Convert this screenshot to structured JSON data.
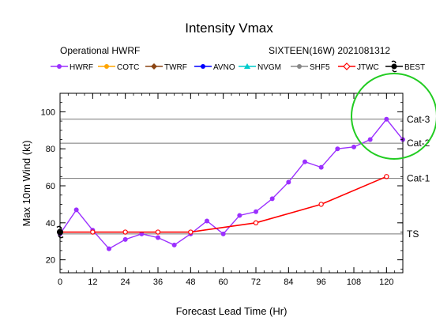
{
  "chart_data": {
    "type": "line",
    "title": "Intensity Vmax",
    "subtitle_left": "Operational HWRF",
    "subtitle_right": "SIXTEEN(16W) 2021081312",
    "xlabel": "Forecast Lead Time (Hr)",
    "ylabel": "Max 10m Wind (kt)",
    "xlim": [
      0,
      126
    ],
    "ylim": [
      13,
      110
    ],
    "xticks": [
      0,
      12,
      24,
      36,
      48,
      60,
      72,
      84,
      96,
      108,
      120
    ],
    "yticks": [
      20,
      40,
      60,
      80,
      100
    ],
    "legend_position": "top",
    "legend": [
      {
        "name": "HWRF",
        "color": "#9b30ff",
        "marker": "circle"
      },
      {
        "name": "COTC",
        "color": "#ffa500",
        "marker": "circle"
      },
      {
        "name": "TWRF",
        "color": "#8b4513",
        "marker": "diamond"
      },
      {
        "name": "AVNO",
        "color": "#0000ff",
        "marker": "circle"
      },
      {
        "name": "NVGM",
        "color": "#00cccc",
        "marker": "triangle"
      },
      {
        "name": "SHF5",
        "color": "#888888",
        "marker": "circle"
      },
      {
        "name": "JTWC",
        "color": "#ff0000",
        "marker": "diamond-open"
      },
      {
        "name": "BEST",
        "color": "#000000",
        "marker": "storm"
      }
    ],
    "reference_lines": [
      {
        "label": "TS",
        "value": 34
      },
      {
        "label": "Cat-1",
        "value": 64
      },
      {
        "label": "Cat-2",
        "value": 83
      },
      {
        "label": "Cat-3",
        "value": 96
      }
    ],
    "series": [
      {
        "name": "HWRF",
        "color": "#9b30ff",
        "x": [
          0,
          6,
          12,
          18,
          24,
          30,
          36,
          42,
          48,
          54,
          60,
          66,
          72,
          78,
          84,
          90,
          96,
          102,
          108,
          114,
          120,
          126
        ],
        "y": [
          34,
          47,
          36,
          26,
          31,
          34,
          32,
          28,
          34,
          41,
          34,
          44,
          46,
          53,
          62,
          73,
          70,
          80,
          81,
          85,
          96,
          85
        ]
      },
      {
        "name": "JTWC",
        "color": "#ff0000",
        "x": [
          0,
          12,
          24,
          36,
          48,
          72,
          96,
          120
        ],
        "y": [
          35,
          35,
          35,
          35,
          35,
          40,
          50,
          65
        ]
      },
      {
        "name": "BEST",
        "color": "#000000",
        "x": [
          0
        ],
        "y": [
          35
        ]
      }
    ],
    "highlight": {
      "shape": "circle",
      "color": "#22cc22",
      "around": "Cat-3 peak"
    }
  }
}
